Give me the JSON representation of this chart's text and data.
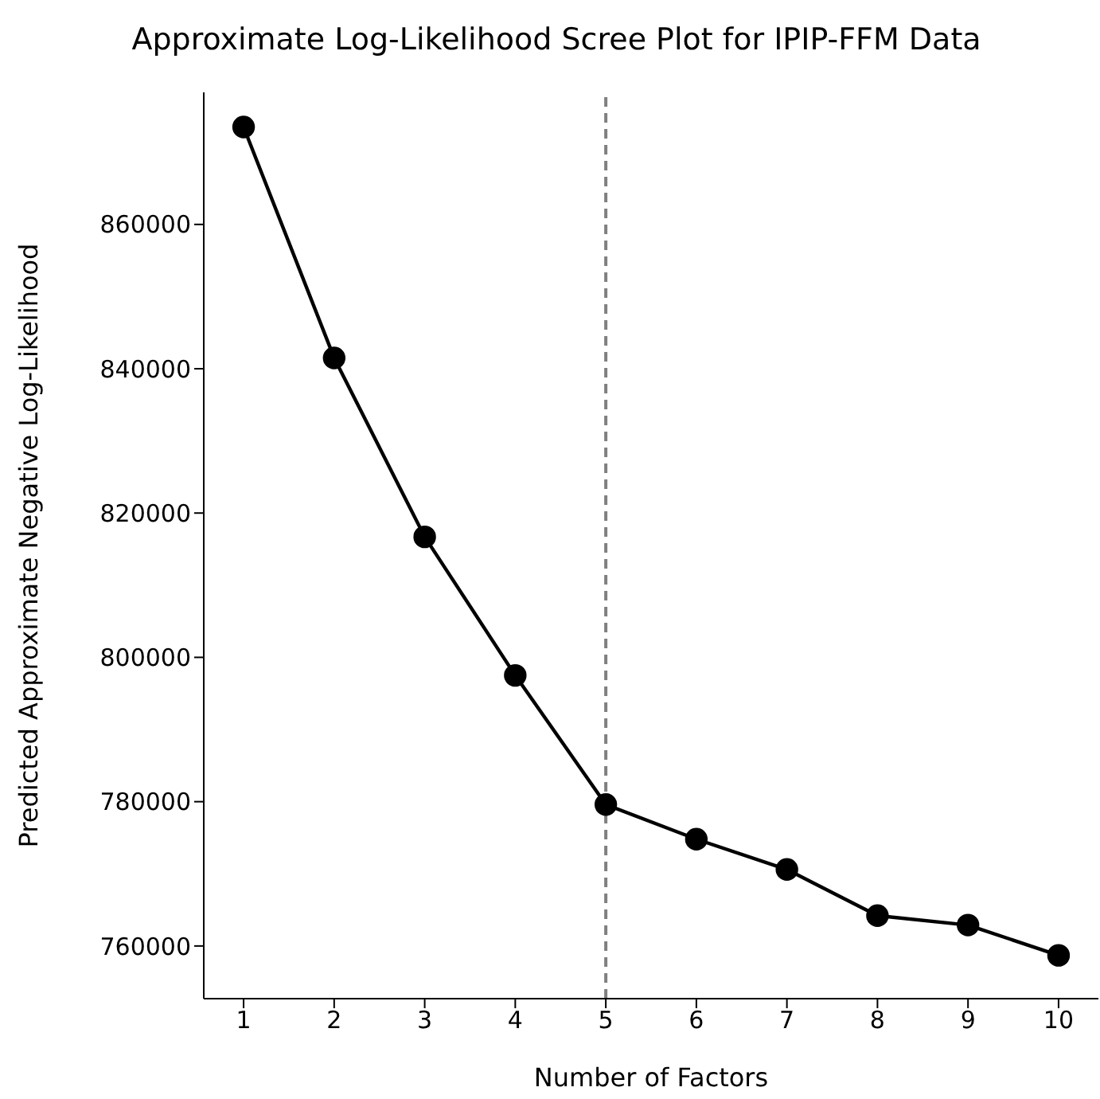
{
  "chart_data": {
    "type": "line",
    "title": "Approximate Log-Likelihood Scree Plot for IPIP-FFM Data",
    "xlabel": "Number of Factors",
    "ylabel": "Predicted Approximate Negative Log-Likelihood",
    "x": [
      1,
      2,
      3,
      4,
      5,
      6,
      7,
      8,
      9,
      10
    ],
    "series": [
      {
        "color": "#000000",
        "values": [
          873500,
          841500,
          816700,
          797500,
          779600,
          774800,
          770600,
          764200,
          762900,
          758700
        ]
      }
    ],
    "xlim": [
      0.56,
      10.44
    ],
    "xticks": [
      1,
      2,
      3,
      4,
      5,
      6,
      7,
      8,
      9,
      10
    ],
    "ylim": [
      752700,
      878300
    ],
    "yticks": [
      760000,
      780000,
      800000,
      820000,
      840000,
      860000
    ],
    "ref_lines": [
      {
        "axis": "x",
        "value": 5,
        "color": "#808080",
        "line_style": "dashed"
      }
    ],
    "grid": false,
    "legend": false,
    "marker": "circle",
    "line_style": "solid"
  }
}
